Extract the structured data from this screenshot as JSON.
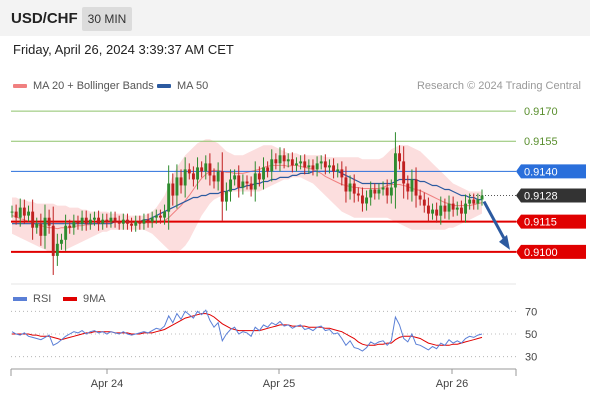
{
  "header": {
    "symbol": "USD/CHF",
    "timeframe": "30 MIN"
  },
  "timestamp": "Friday, April 26, 2024 3:39:37 AM CET",
  "legend": {
    "ma20_label": "MA 20 + Bollinger Bands",
    "ma50_label": "MA 50",
    "ma20_color": "#f08080",
    "ma50_color": "#2c5aa0",
    "source": "Research © 2024 Trading Central"
  },
  "rsi_legend": {
    "rsi_label": "RSI",
    "ma_label": "9MA",
    "rsi_color": "#5a7fd6",
    "ma_color": "#e00000"
  },
  "colors": {
    "up": "#2e8b2e",
    "down": "#c02020",
    "resistance": "#8ec26a",
    "pivot": "#2a6fdb",
    "support": "#e00000",
    "arrow": "#2c5aa0",
    "band": "#fbd3d3"
  },
  "chart_data": [
    {
      "type": "candlestick",
      "ylim": [
        0.9085,
        0.9178
      ],
      "x_ticks": [
        "Apr 24",
        "Apr 25",
        "Apr 26"
      ],
      "levels": [
        {
          "label": "0.9170",
          "value": 0.917,
          "kind": "resistance"
        },
        {
          "label": "0.9155",
          "value": 0.9155,
          "kind": "resistance"
        },
        {
          "label": "0.9140",
          "value": 0.914,
          "kind": "pivot"
        },
        {
          "label": "0.9128",
          "value": 0.9128,
          "kind": "current"
        },
        {
          "label": "0.9115",
          "value": 0.9115,
          "kind": "support"
        },
        {
          "label": "0.9100",
          "value": 0.91,
          "kind": "support"
        }
      ],
      "close": [
        0.912,
        0.9117,
        0.9122,
        0.9118,
        0.912,
        0.9112,
        0.9114,
        0.9108,
        0.9117,
        0.9113,
        0.9098,
        0.9104,
        0.9106,
        0.9113,
        0.9112,
        0.9115,
        0.9114,
        0.9117,
        0.9114,
        0.9116,
        0.9117,
        0.9114,
        0.9116,
        0.9115,
        0.9117,
        0.9115,
        0.9114,
        0.9116,
        0.9114,
        0.9113,
        0.9115,
        0.9114,
        0.9116,
        0.9115,
        0.9117,
        0.9118,
        0.9117,
        0.912,
        0.9134,
        0.9128,
        0.9137,
        0.9133,
        0.9141,
        0.9139,
        0.9136,
        0.9142,
        0.914,
        0.9144,
        0.9138,
        0.9135,
        0.914,
        0.9125,
        0.913,
        0.9136,
        0.9138,
        0.9132,
        0.9135,
        0.9134,
        0.9131,
        0.9139,
        0.9136,
        0.9142,
        0.914,
        0.9146,
        0.9144,
        0.9148,
        0.9145,
        0.9146,
        0.9143,
        0.9144,
        0.9145,
        0.9142,
        0.9143,
        0.9141,
        0.9144,
        0.9145,
        0.9142,
        0.9143,
        0.914,
        0.9141,
        0.9137,
        0.913,
        0.9134,
        0.9129,
        0.9128,
        0.9124,
        0.9127,
        0.9131,
        0.9129,
        0.9131,
        0.9132,
        0.9128,
        0.9132,
        0.9149,
        0.9145,
        0.9134,
        0.913,
        0.9136,
        0.9128,
        0.9126,
        0.9123,
        0.9119,
        0.9121,
        0.9118,
        0.9123,
        0.912,
        0.9124,
        0.9121,
        0.9122,
        0.9119,
        0.9124,
        0.9126,
        0.9124,
        0.9126,
        0.9128
      ],
      "bands_upper": [
        0.9127,
        0.9127,
        0.9126,
        0.9126,
        0.9125,
        0.9125,
        0.9124,
        0.9124,
        0.9124,
        0.9124,
        0.9124,
        0.9123,
        0.9123,
        0.9123,
        0.9122,
        0.9122,
        0.9122,
        0.9121,
        0.9121,
        0.912,
        0.912,
        0.912,
        0.912,
        0.912,
        0.9119,
        0.9119,
        0.9119,
        0.9119,
        0.9118,
        0.9118,
        0.9118,
        0.9118,
        0.9118,
        0.9119,
        0.912,
        0.9122,
        0.9125,
        0.9128,
        0.9133,
        0.9138,
        0.9142,
        0.9145,
        0.9148,
        0.915,
        0.9152,
        0.9154,
        0.9155,
        0.9156,
        0.9156,
        0.9155,
        0.9154,
        0.9152,
        0.915,
        0.9149,
        0.9148,
        0.9148,
        0.9148,
        0.9149,
        0.915,
        0.9151,
        0.9152,
        0.9153,
        0.9153,
        0.9153,
        0.9152,
        0.9151,
        0.915,
        0.9149,
        0.9149,
        0.9149,
        0.9148,
        0.9148,
        0.9148,
        0.9148,
        0.9148,
        0.9148,
        0.9147,
        0.9147,
        0.9147,
        0.9147,
        0.9147,
        0.9147,
        0.9147,
        0.9147,
        0.9147,
        0.9146,
        0.9146,
        0.9146,
        0.9146,
        0.9146,
        0.9147,
        0.9149,
        0.9151,
        0.9152,
        0.9153,
        0.9153,
        0.9153,
        0.9152,
        0.9151,
        0.915,
        0.9148,
        0.9146,
        0.9144,
        0.9142,
        0.914,
        0.9138,
        0.9136,
        0.9134,
        0.9133,
        0.9132,
        0.9131,
        0.913,
        0.913,
        0.913,
        0.913
      ],
      "bands_lower": [
        0.9109,
        0.9108,
        0.9107,
        0.9106,
        0.9105,
        0.9104,
        0.9103,
        0.9102,
        0.9101,
        0.91,
        0.91,
        0.91,
        0.9101,
        0.9101,
        0.9102,
        0.9103,
        0.9104,
        0.9105,
        0.9106,
        0.9107,
        0.9108,
        0.9109,
        0.911,
        0.911,
        0.9111,
        0.9111,
        0.9111,
        0.9111,
        0.9111,
        0.9111,
        0.9111,
        0.9111,
        0.9111,
        0.911,
        0.9109,
        0.9107,
        0.9105,
        0.9103,
        0.9101,
        0.91,
        0.91,
        0.9101,
        0.9103,
        0.9106,
        0.911,
        0.9114,
        0.9118,
        0.9121,
        0.9124,
        0.9126,
        0.9127,
        0.9128,
        0.9129,
        0.913,
        0.913,
        0.913,
        0.913,
        0.913,
        0.913,
        0.913,
        0.913,
        0.9131,
        0.9132,
        0.9133,
        0.9134,
        0.9135,
        0.9136,
        0.9136,
        0.9137,
        0.9137,
        0.9137,
        0.9136,
        0.9135,
        0.9134,
        0.9132,
        0.913,
        0.9128,
        0.9126,
        0.9124,
        0.9122,
        0.912,
        0.9119,
        0.9118,
        0.9117,
        0.9117,
        0.9117,
        0.9117,
        0.9117,
        0.9117,
        0.9117,
        0.9117,
        0.9117,
        0.9116,
        0.9115,
        0.9114,
        0.9113,
        0.9112,
        0.9111,
        0.9111,
        0.9111,
        0.9111,
        0.9111,
        0.9111,
        0.9111,
        0.9111,
        0.9111,
        0.9112,
        0.9112,
        0.9113,
        0.9114,
        0.9115,
        0.9116,
        0.9117,
        0.9118,
        0.9119
      ],
      "ma50": [
        0.9114,
        0.9114,
        0.9114,
        0.9114,
        0.9114,
        0.9114,
        0.9114,
        0.9114,
        0.9114,
        0.9114,
        0.9114,
        0.9114,
        0.9114,
        0.9114,
        0.9114,
        0.9114,
        0.9114,
        0.9114,
        0.9114,
        0.9114,
        0.9114,
        0.9114,
        0.9114,
        0.9114,
        0.9114,
        0.9115,
        0.9115,
        0.9115,
        0.9115,
        0.9115,
        0.9115,
        0.9115,
        0.9116,
        0.9116,
        0.9117,
        0.9118,
        0.9119,
        0.912,
        0.9121,
        0.9122,
        0.9123,
        0.9124,
        0.9125,
        0.9126,
        0.9127,
        0.9127,
        0.9128,
        0.9128,
        0.9129,
        0.9129,
        0.9129,
        0.913,
        0.913,
        0.9131,
        0.9131,
        0.9132,
        0.9132,
        0.9133,
        0.9133,
        0.9134,
        0.9134,
        0.9135,
        0.9135,
        0.9136,
        0.9136,
        0.9137,
        0.9137,
        0.9137,
        0.9138,
        0.9138,
        0.9139,
        0.9139,
        0.9139,
        0.914,
        0.914,
        0.914,
        0.914,
        0.914,
        0.914,
        0.914,
        0.9139,
        0.9138,
        0.9137,
        0.9136,
        0.9135,
        0.9134,
        0.9134,
        0.9134,
        0.9134,
        0.9134,
        0.9134,
        0.9134,
        0.9134,
        0.9135,
        0.9136,
        0.9136,
        0.9136,
        0.9136,
        0.9136,
        0.9135,
        0.9135,
        0.9134,
        0.9133,
        0.9133,
        0.9132,
        0.9131,
        0.9131,
        0.913,
        0.9129,
        0.9128,
        0.9128,
        0.9127,
        0.9127,
        0.9126,
        0.9126
      ],
      "projection": {
        "from": 0.9126,
        "to": 0.91
      }
    },
    {
      "type": "line",
      "title": "RSI",
      "ylim": [
        20,
        80
      ],
      "y_ticks": [
        70,
        50,
        30
      ],
      "rsi": [
        52,
        50,
        49,
        51,
        48,
        47,
        46,
        45,
        47,
        49,
        40,
        42,
        45,
        48,
        50,
        52,
        51,
        53,
        50,
        52,
        53,
        51,
        52,
        50,
        52,
        51,
        50,
        52,
        50,
        49,
        50,
        51,
        52,
        51,
        53,
        55,
        54,
        57,
        66,
        60,
        68,
        63,
        70,
        67,
        64,
        70,
        67,
        71,
        62,
        56,
        60,
        44,
        50,
        54,
        56,
        50,
        52,
        51,
        48,
        56,
        53,
        58,
        56,
        60,
        58,
        61,
        57,
        58,
        55,
        57,
        58,
        54,
        55,
        53,
        56,
        57,
        53,
        54,
        50,
        51,
        46,
        40,
        44,
        38,
        37,
        35,
        38,
        43,
        41,
        43,
        44,
        40,
        44,
        65,
        58,
        46,
        43,
        50,
        41,
        40,
        38,
        36,
        39,
        37,
        42,
        40,
        45,
        42,
        44,
        42,
        46,
        48,
        47,
        49,
        50
      ],
      "ma9": [
        50,
        50,
        50,
        50,
        50,
        49,
        49,
        48,
        48,
        48,
        47,
        46,
        45,
        46,
        47,
        48,
        49,
        50,
        51,
        51,
        52,
        52,
        52,
        52,
        52,
        51,
        51,
        51,
        51,
        50,
        50,
        50,
        51,
        51,
        51,
        52,
        53,
        54,
        56,
        58,
        60,
        62,
        64,
        65,
        66,
        67,
        68,
        68,
        67,
        65,
        62,
        59,
        57,
        55,
        54,
        53,
        53,
        53,
        53,
        53,
        53,
        54,
        55,
        56,
        57,
        58,
        58,
        58,
        57,
        57,
        57,
        57,
        56,
        56,
        56,
        56,
        55,
        55,
        54,
        53,
        52,
        50,
        48,
        46,
        43,
        41,
        40,
        40,
        40,
        41,
        41,
        42,
        42,
        45,
        47,
        48,
        48,
        48,
        47,
        46,
        44,
        42,
        41,
        40,
        40,
        40,
        40,
        41,
        41,
        42,
        43,
        44,
        45,
        46,
        47
      ]
    }
  ]
}
